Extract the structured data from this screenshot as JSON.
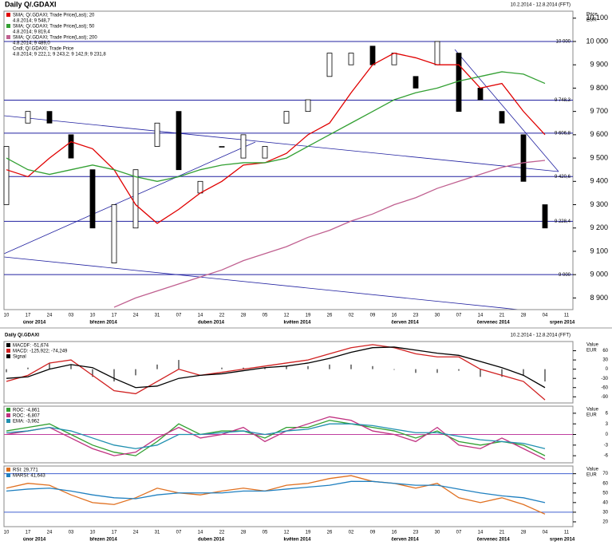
{
  "chart_data": [
    {
      "type": "candlestick",
      "title": "Daily Q/.GDAXI",
      "date_range": "10.2.2014 - 12.8.2014 (FFT)",
      "y_axis_label": "Price",
      "y_axis_unit": "EUR",
      "x": [
        "10",
        "17",
        "24",
        "03",
        "10",
        "17",
        "24",
        "31",
        "07",
        "14",
        "22",
        "28",
        "05",
        "12",
        "19",
        "26",
        "02",
        "09",
        "16",
        "23",
        "30",
        "07",
        "14",
        "21",
        "28",
        "04",
        "11"
      ],
      "months": [
        "únor 2014",
        "březen 2014",
        "duben 2014",
        "květen 2014",
        "červen 2014",
        "červenec 2014",
        "srpen 2014"
      ],
      "ylim": [
        8850,
        10130
      ],
      "yticks": [
        {
          "value": 8900,
          "label": "8 900"
        },
        {
          "value": 9000,
          "label": "9 000"
        },
        {
          "value": 9100,
          "label": "9 100"
        },
        {
          "value": 9200,
          "label": "9 200"
        },
        {
          "value": 9300,
          "label": "9 300"
        },
        {
          "value": 9400,
          "label": "9 400"
        },
        {
          "value": 9500,
          "label": "9 500"
        },
        {
          "value": 9600,
          "label": "9 600"
        },
        {
          "value": 9700,
          "label": "9 700"
        },
        {
          "value": 9800,
          "label": "9 800"
        },
        {
          "value": 9900,
          "label": "9 900"
        },
        {
          "value": 10000,
          "label": "10 000"
        },
        {
          "value": 10100,
          "label": "10 100"
        }
      ],
      "levels": [
        {
          "value": 10000,
          "label": "10 000"
        },
        {
          "value": 9748.3,
          "label": "9 748,3"
        },
        {
          "value": 9606.8,
          "label": "9 606,8"
        },
        {
          "value": 9420.6,
          "label": "9 420,6"
        },
        {
          "value": 9228.4,
          "label": "9 228,4"
        },
        {
          "value": 9000,
          "label": "9 000"
        }
      ],
      "candles": {
        "name": "Cndl; Q/.GDAXI; Trade Price",
        "last_label": "4.8.2014; 9 222,1; 9 243,2; 9 142,9; 9 231,8",
        "open": [
          9300,
          9650,
          9700,
          9600,
          9450,
          9050,
          9200,
          9550,
          9700,
          9350,
          9550,
          9500,
          9500,
          9650,
          9700,
          9850,
          9900,
          9980,
          9900,
          9850,
          9900,
          9950,
          9800,
          9700,
          9600,
          9300,
          null
        ],
        "close": [
          9550,
          9700,
          9650,
          9500,
          9200,
          9300,
          9450,
          9650,
          9450,
          9400,
          9550,
          9600,
          9550,
          9700,
          9750,
          9950,
          9950,
          9900,
          9950,
          9800,
          10000,
          9700,
          9750,
          9650,
          9400,
          9200,
          null
        ]
      },
      "series": [
        {
          "name": "SMA; Q/.GDAXI; Trade Price(Last); 20",
          "last_label": "4.8.2014; 9 548,7",
          "color": "#e00000",
          "values": [
            9450,
            9420,
            9500,
            9570,
            9540,
            9450,
            9300,
            9220,
            9280,
            9350,
            9400,
            9470,
            9480,
            9520,
            9600,
            9650,
            9780,
            9900,
            9950,
            9930,
            9900,
            9900,
            9800,
            9820,
            9700,
            9600,
            null
          ]
        },
        {
          "name": "SMA; Q/.GDAXI; Trade Price(Last); 50",
          "last_label": "4.8.2014; 9 819,4",
          "color": "#33a033",
          "values": [
            9500,
            9450,
            9430,
            9450,
            9470,
            9450,
            9420,
            9400,
            9420,
            9450,
            9470,
            9480,
            9480,
            9500,
            9550,
            9600,
            9650,
            9700,
            9750,
            9780,
            9800,
            9830,
            9850,
            9870,
            9860,
            9820,
            null
          ]
        },
        {
          "name": "SMA; Q/.GDAXI; Trade Price(Last); 200",
          "last_label": "4.8.2014; 9 489,0",
          "color": "#c06090",
          "values": [
            null,
            null,
            null,
            null,
            null,
            8860,
            8900,
            8930,
            8960,
            8990,
            9020,
            9060,
            9090,
            9120,
            9160,
            9190,
            9230,
            9260,
            9300,
            9330,
            9370,
            9400,
            9430,
            9460,
            9480,
            9490,
            null
          ]
        }
      ]
    },
    {
      "type": "line",
      "y_axis_label": "Value",
      "y_axis_unit": "EUR",
      "ylim": [
        -110,
        90
      ],
      "yticks": [
        60,
        30,
        0,
        -30,
        -60,
        -90
      ],
      "series": [
        {
          "name": "MACDF: -51,674",
          "color": "#000000",
          "kind": "bar",
          "values": [
            -10,
            5,
            20,
            15,
            -25,
            -40,
            -20,
            15,
            30,
            0,
            5,
            5,
            5,
            10,
            10,
            15,
            15,
            10,
            -2,
            -12,
            -12,
            -5,
            -25,
            -25,
            -20,
            -40,
            null
          ]
        },
        {
          "name": "MACD: -125,922; -74,249",
          "color": "#d02020",
          "values": [
            -40,
            -20,
            20,
            30,
            -20,
            -70,
            -80,
            -40,
            0,
            -20,
            -10,
            0,
            10,
            20,
            30,
            50,
            70,
            80,
            70,
            50,
            40,
            40,
            0,
            -20,
            -40,
            -100,
            null
          ]
        },
        {
          "name": "Signal",
          "color": "#000000",
          "values": [
            -30,
            -25,
            0,
            15,
            5,
            -30,
            -60,
            -55,
            -30,
            -20,
            -15,
            -5,
            5,
            10,
            20,
            35,
            55,
            70,
            72,
            62,
            52,
            45,
            25,
            5,
            -20,
            -60,
            null
          ]
        }
      ]
    },
    {
      "type": "line",
      "y_axis_label": "Value",
      "y_axis_unit": "EUR",
      "ylim": [
        -8,
        8
      ],
      "yticks": [
        6,
        3,
        0,
        -3,
        -6
      ],
      "hlines": [
        0
      ],
      "hline_color": "#c040a0",
      "series": [
        {
          "name": "ROC: -4,861",
          "color": "#30a030",
          "values": [
            1,
            2,
            3,
            0,
            -3,
            -5,
            -6,
            -2,
            3,
            0,
            1,
            1,
            -1,
            2,
            2,
            4,
            3,
            2,
            1,
            -1,
            1,
            -2,
            -3,
            -2,
            -3,
            -6,
            null
          ]
        },
        {
          "name": "ROC: -6,807",
          "color": "#c03080",
          "values": [
            0,
            1,
            2,
            -1,
            -4,
            -6,
            -5,
            -1,
            2,
            -1,
            0,
            2,
            -2,
            1,
            3,
            5,
            4,
            1,
            0,
            -2,
            2,
            -3,
            -4,
            -1,
            -4,
            -7,
            null
          ]
        },
        {
          "name": "EMA: -3,962",
          "color": "#2090b0",
          "values": [
            0.5,
            1,
            2,
            1,
            -1,
            -3,
            -4,
            -3,
            0,
            0,
            0.5,
            1,
            0,
            1,
            1.5,
            3,
            3,
            2.5,
            1.5,
            0.5,
            0.5,
            -0.5,
            -1.5,
            -2,
            -2.5,
            -4,
            null
          ]
        }
      ]
    },
    {
      "type": "line",
      "y_axis_label": "Value",
      "y_axis_unit": "EUR",
      "ylim": [
        15,
        78
      ],
      "yticks": [
        70,
        60,
        50,
        40,
        30,
        20
      ],
      "hlines": [
        70,
        30
      ],
      "hline_color": "#4060d0",
      "x": [
        "10",
        "17",
        "24",
        "03",
        "10",
        "17",
        "24",
        "31",
        "07",
        "14",
        "22",
        "28",
        "05",
        "12",
        "19",
        "26",
        "02",
        "09",
        "16",
        "23",
        "30",
        "07",
        "14",
        "21",
        "28",
        "04",
        "11"
      ],
      "months": [
        "únor 2014",
        "březen 2014",
        "duben 2014",
        "květen 2014",
        "červen 2014",
        "červenec 2014",
        "srpen 2014"
      ],
      "series": [
        {
          "name": "RSI: 29,771",
          "color": "#e07020",
          "values": [
            55,
            60,
            58,
            48,
            40,
            38,
            45,
            55,
            50,
            48,
            52,
            55,
            52,
            58,
            60,
            65,
            68,
            62,
            60,
            55,
            60,
            45,
            40,
            45,
            38,
            28,
            null
          ]
        },
        {
          "name": "MARSI: 41,643",
          "color": "#2080c0",
          "values": [
            52,
            54,
            55,
            52,
            48,
            45,
            44,
            48,
            50,
            50,
            50,
            52,
            52,
            54,
            56,
            58,
            62,
            62,
            60,
            58,
            58,
            54,
            50,
            47,
            45,
            40,
            null
          ]
        }
      ]
    }
  ]
}
